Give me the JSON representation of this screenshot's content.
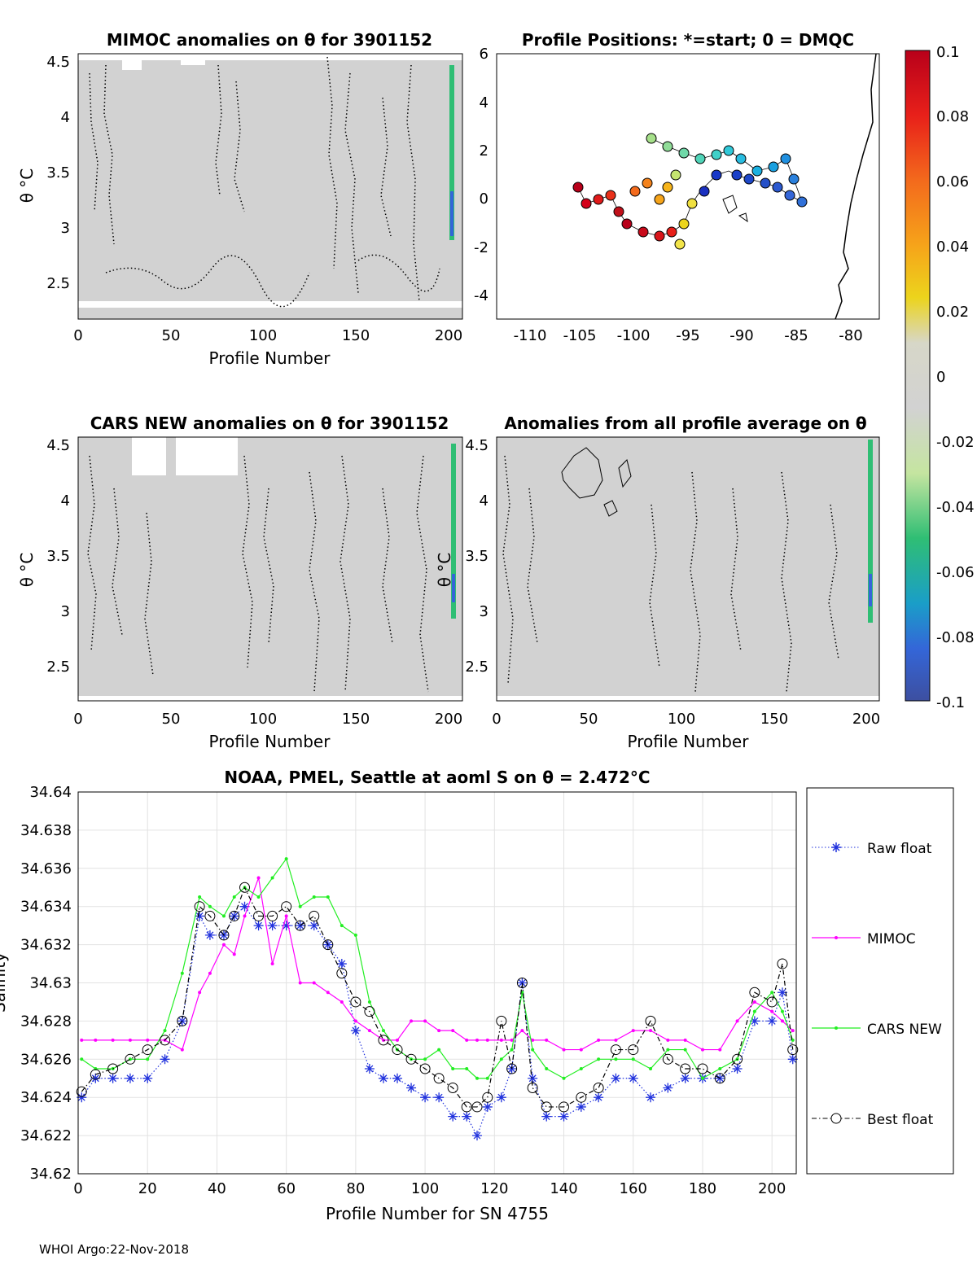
{
  "colors": {
    "panel_bg": "#d2d2d2",
    "raw": "#2233dd",
    "mimoc": "#ff00ff",
    "cars": "#22ee22",
    "best": "#000000"
  },
  "panels": {
    "mimoc": {
      "title": "MIMOC anomalies on θ  for 3901152",
      "ylabel": "θ °C",
      "xlabel": "Profile Number",
      "xticks": [
        "0",
        "50",
        "100",
        "150",
        "200"
      ],
      "yticks": [
        "4.5",
        "4",
        "3.5",
        "3",
        "2.5"
      ]
    },
    "positions": {
      "title": "Profile Positions: *=start; 0 = DMQC",
      "xticks": [
        "-110",
        "-105",
        "-100",
        "-95",
        "-90",
        "-85",
        "-80"
      ],
      "yticks": [
        "6",
        "4",
        "2",
        "0",
        "-2",
        "-4"
      ]
    },
    "cars": {
      "title": "CARS NEW anomalies on θ for 3901152",
      "ylabel": "θ °C",
      "xlabel": "Profile Number",
      "xticks": [
        "0",
        "50",
        "100",
        "150",
        "200"
      ],
      "yticks": [
        "4.5",
        "4",
        "3.5",
        "3",
        "2.5"
      ]
    },
    "allavg": {
      "title": "Anomalies from all profile average on θ",
      "ylabel": "θ °C",
      "xlabel": "Profile Number",
      "xticks": [
        "0",
        "50",
        "100",
        "150",
        "200"
      ],
      "yticks": [
        "4.5",
        "4",
        "3.5",
        "3",
        "2.5"
      ]
    }
  },
  "colorbar": {
    "ticks": [
      "0.1",
      "0.08",
      "0.06",
      "0.04",
      "0.02",
      "0",
      "-0.02",
      "-0.04",
      "-0.06",
      "-0.08",
      "-0.1"
    ]
  },
  "footer": "WHOI Argo:22-Nov-2018",
  "chart_data": {
    "type": "line",
    "title": "NOAA, PMEL, Seattle at aoml S on θ = 2.472°C",
    "xlabel": "Profile Number for SN 4755",
    "ylabel": "Salinity",
    "xlim": [
      0,
      207
    ],
    "ylim": [
      34.62,
      34.64
    ],
    "xticks": [
      "0",
      "20",
      "40",
      "60",
      "80",
      "100",
      "120",
      "140",
      "160",
      "180",
      "200"
    ],
    "yticks": [
      "34.64",
      "34.638",
      "34.636",
      "34.634",
      "34.632",
      "34.63",
      "34.628",
      "34.626",
      "34.624",
      "34.622",
      "34.62"
    ],
    "grid": true,
    "legend_position": "outside-right",
    "series": [
      {
        "name": "Raw float",
        "style": "dotted-star",
        "x": [
          1,
          5,
          10,
          15,
          20,
          25,
          30,
          35,
          38,
          42,
          45,
          48,
          52,
          56,
          60,
          64,
          68,
          72,
          76,
          80,
          84,
          88,
          92,
          96,
          100,
          104,
          108,
          112,
          115,
          118,
          122,
          125,
          128,
          131,
          135,
          140,
          145,
          150,
          155,
          160,
          165,
          170,
          175,
          180,
          185,
          190,
          195,
          200,
          203,
          206
        ],
        "values": [
          34.624,
          34.625,
          34.625,
          34.625,
          34.625,
          34.626,
          34.628,
          34.6335,
          34.6325,
          34.6325,
          34.6335,
          34.634,
          34.633,
          34.633,
          34.633,
          34.633,
          34.633,
          34.632,
          34.631,
          34.6275,
          34.6255,
          34.625,
          34.625,
          34.6245,
          34.624,
          34.624,
          34.623,
          34.623,
          34.622,
          34.6235,
          34.624,
          34.6255,
          34.63,
          34.625,
          34.623,
          34.623,
          34.6235,
          34.624,
          34.625,
          34.625,
          34.624,
          34.6245,
          34.625,
          34.625,
          34.625,
          34.6255,
          34.628,
          34.628,
          34.6295,
          34.626
        ]
      },
      {
        "name": "MIMOC",
        "style": "dot-line",
        "x": [
          1,
          5,
          10,
          15,
          20,
          25,
          30,
          35,
          38,
          42,
          45,
          48,
          52,
          56,
          60,
          64,
          68,
          72,
          76,
          80,
          84,
          88,
          92,
          96,
          100,
          104,
          108,
          112,
          115,
          118,
          122,
          125,
          128,
          131,
          135,
          140,
          145,
          150,
          155,
          160,
          165,
          170,
          175,
          180,
          185,
          190,
          195,
          200,
          203,
          206
        ],
        "values": [
          34.627,
          34.627,
          34.627,
          34.627,
          34.627,
          34.627,
          34.6265,
          34.6295,
          34.6305,
          34.632,
          34.6315,
          34.6335,
          34.6355,
          34.631,
          34.6335,
          34.63,
          34.63,
          34.6295,
          34.629,
          34.628,
          34.6275,
          34.627,
          34.627,
          34.628,
          34.628,
          34.6275,
          34.6275,
          34.627,
          34.627,
          34.627,
          34.627,
          34.627,
          34.6275,
          34.627,
          34.627,
          34.6265,
          34.6265,
          34.627,
          34.627,
          34.6275,
          34.6275,
          34.627,
          34.627,
          34.6265,
          34.6265,
          34.628,
          34.629,
          34.6285,
          34.628,
          34.6275
        ]
      },
      {
        "name": "CARS NEW",
        "style": "dot-line",
        "x": [
          1,
          5,
          10,
          15,
          20,
          25,
          30,
          35,
          38,
          42,
          45,
          48,
          52,
          56,
          60,
          64,
          68,
          72,
          76,
          80,
          84,
          88,
          92,
          96,
          100,
          104,
          108,
          112,
          115,
          118,
          122,
          125,
          128,
          131,
          135,
          140,
          145,
          150,
          155,
          160,
          165,
          170,
          175,
          180,
          185,
          190,
          195,
          200,
          203,
          206
        ],
        "values": [
          34.626,
          34.6255,
          34.6255,
          34.626,
          34.626,
          34.6275,
          34.6305,
          34.6345,
          34.634,
          34.6335,
          34.6345,
          34.635,
          34.6345,
          34.6355,
          34.6365,
          34.634,
          34.6345,
          34.6345,
          34.633,
          34.6325,
          34.629,
          34.6275,
          34.6265,
          34.626,
          34.626,
          34.6265,
          34.6255,
          34.6255,
          34.625,
          34.625,
          34.626,
          34.6265,
          34.6295,
          34.6265,
          34.6255,
          34.625,
          34.6255,
          34.626,
          34.626,
          34.626,
          34.6255,
          34.6265,
          34.6265,
          34.625,
          34.6255,
          34.626,
          34.6285,
          34.6295,
          34.6285,
          34.627
        ]
      },
      {
        "name": "Best float",
        "style": "dashdot-circle",
        "x": [
          1,
          5,
          10,
          15,
          20,
          25,
          30,
          35,
          38,
          42,
          45,
          48,
          52,
          56,
          60,
          64,
          68,
          72,
          76,
          80,
          84,
          88,
          92,
          96,
          100,
          104,
          108,
          112,
          115,
          118,
          122,
          125,
          128,
          131,
          135,
          140,
          145,
          150,
          155,
          160,
          165,
          170,
          175,
          180,
          185,
          190,
          195,
          200,
          203,
          206
        ],
        "values": [
          34.6243,
          34.6252,
          34.6255,
          34.626,
          34.6265,
          34.627,
          34.628,
          34.634,
          34.6335,
          34.6325,
          34.6335,
          34.635,
          34.6335,
          34.6335,
          34.634,
          34.633,
          34.6335,
          34.632,
          34.6305,
          34.629,
          34.6285,
          34.627,
          34.6265,
          34.626,
          34.6255,
          34.625,
          34.6245,
          34.6235,
          34.6235,
          34.624,
          34.628,
          34.6255,
          34.63,
          34.6245,
          34.6235,
          34.6235,
          34.624,
          34.6245,
          34.6265,
          34.6265,
          34.628,
          34.626,
          34.6255,
          34.6255,
          34.625,
          34.626,
          34.6295,
          34.629,
          34.631,
          34.6265
        ]
      }
    ]
  }
}
